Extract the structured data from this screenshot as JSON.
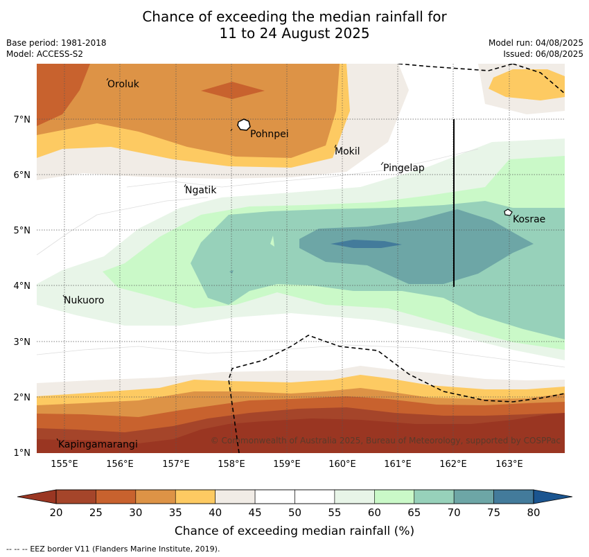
{
  "header": {
    "title_line1": "Chance of exceeding the median rainfall for",
    "title_line2": "11 to 24 August 2025",
    "base_period": "Base period: 1981-2018",
    "model": "Model: ACCESS-S2",
    "model_run": "Model run: 04/08/2025",
    "issued": "Issued: 06/08/2025"
  },
  "map": {
    "lon_ticks": [
      "155°E",
      "156°E",
      "157°E",
      "158°E",
      "159°E",
      "160°E",
      "161°E",
      "162°E",
      "163°E"
    ],
    "lat_ticks": [
      "7°N",
      "6°N",
      "5°N",
      "4°N",
      "3°N",
      "2°N",
      "1°N"
    ],
    "places": [
      {
        "name": "Oroluk"
      },
      {
        "name": "Pohnpei"
      },
      {
        "name": "Mokil"
      },
      {
        "name": "Pingelap"
      },
      {
        "name": "Ngatik"
      },
      {
        "name": "Kosrae"
      },
      {
        "name": "Nukuoro"
      },
      {
        "name": "Kapingamarangi"
      }
    ],
    "copyright": "© Commonwealth of Australia 2025, Bureau of Meteorology, supported by COSPPac"
  },
  "colorbar": {
    "label": "Chance of exceeding median rainfall (%)",
    "ticks": [
      "20",
      "25",
      "30",
      "35",
      "40",
      "45",
      "50",
      "55",
      "60",
      "65",
      "70",
      "75",
      "80"
    ],
    "colors": [
      "#a5452a",
      "#c8622e",
      "#dd9346",
      "#fdca62",
      "#f1ece6",
      "#ffffff",
      "#ffffff",
      "#e8f5e8",
      "#caf9c8",
      "#97d1ba",
      "#6da6a6",
      "#437b9b",
      "#1b5590"
    ],
    "under_color": "#9a3622",
    "over_color": "#1b5590"
  },
  "footer": {
    "legend_symbol": "-- -- --",
    "legend_text": "EEZ border V11 (Flanders Marine Institute, 2019)."
  }
}
